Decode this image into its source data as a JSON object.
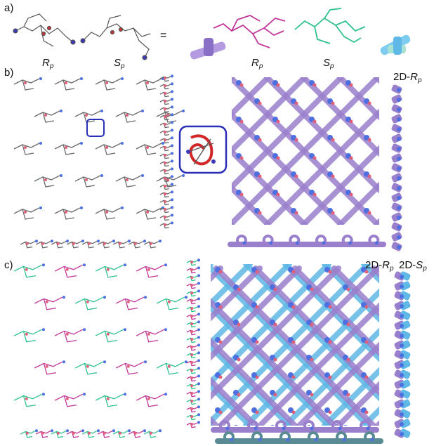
{
  "figure": {
    "panels": [
      {
        "label": "a)"
      },
      {
        "label": "b)"
      },
      {
        "label": "c)"
      }
    ],
    "panel_a": {
      "equals": "=",
      "isomers": [
        {
          "main": "R",
          "sub": "p"
        },
        {
          "main": "S",
          "sub": "p"
        },
        {
          "main": "R",
          "sub": "p"
        },
        {
          "main": "S",
          "sub": "p"
        }
      ]
    },
    "panel_b": {
      "layer_tag": {
        "prefix": "2D-",
        "main": "R",
        "sub": "p"
      }
    },
    "panel_c": {
      "layer_tags": [
        {
          "prefix": "2D-",
          "main": "R",
          "sub": "p"
        },
        {
          "prefix": "2D-",
          "main": "S",
          "sub": "p"
        }
      ]
    },
    "colors": {
      "magenta": "#c2389a",
      "green": "#2fc28c",
      "purple": "#9a7fcc",
      "cyan": "#5fb8e6",
      "node_blue": "#4d6fe0",
      "node_red": "#e0607a",
      "gray": "#6a6a6a",
      "frame_blue": "#2a2fb8"
    }
  }
}
